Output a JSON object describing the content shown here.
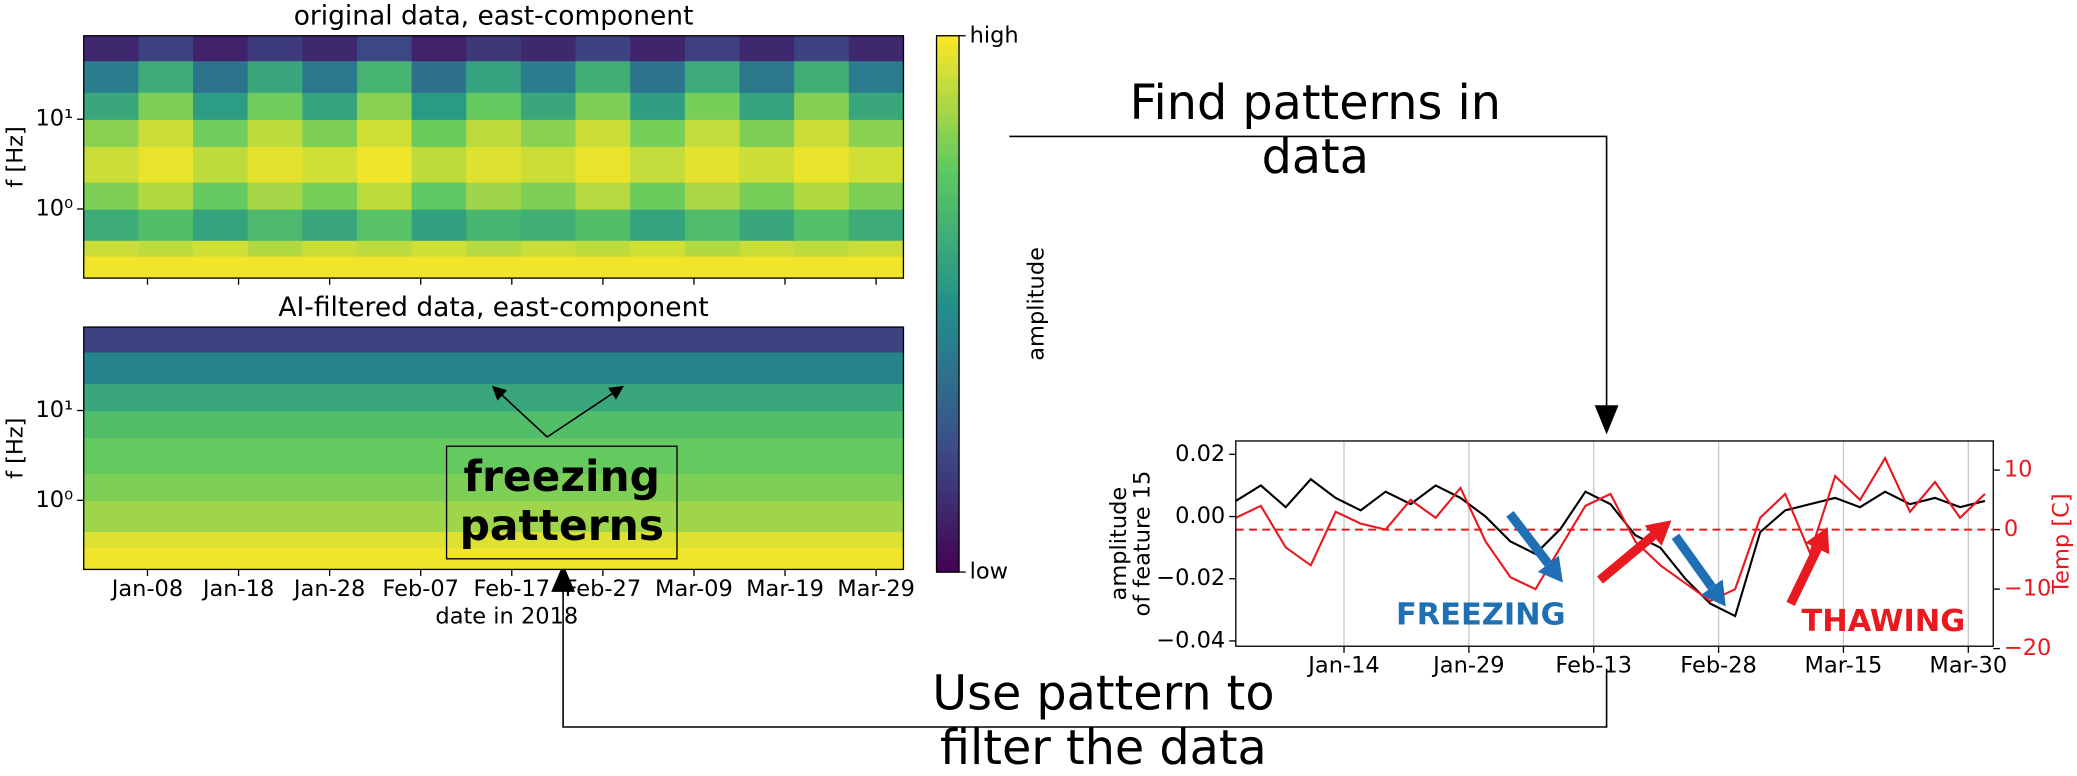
{
  "chart_data": [
    {
      "type": "heatmap",
      "title": "original data, east-component",
      "ylabel": "f [Hz]",
      "log_y": true,
      "ylim": [
        0.17,
        85
      ],
      "yticks": [
        {
          "value": 1,
          "label": "10⁰"
        },
        {
          "value": 10,
          "label": "10¹"
        }
      ],
      "xlim": [
        "2018-01-01",
        "2018-04-01"
      ],
      "xticks": [
        {
          "value": "2018-01-08",
          "label": "Jan-08"
        },
        {
          "value": "2018-01-18",
          "label": "Jan-18"
        },
        {
          "value": "2018-01-28",
          "label": "Jan-28"
        },
        {
          "value": "2018-02-07",
          "label": "Feb-07"
        },
        {
          "value": "2018-02-17",
          "label": "Feb-17"
        },
        {
          "value": "2018-02-27",
          "label": "Feb-27"
        },
        {
          "value": "2018-03-09",
          "label": "Mar-09"
        },
        {
          "value": "2018-03-19",
          "label": "Mar-19"
        },
        {
          "value": "2018-03-29",
          "label": "Mar-29"
        }
      ],
      "show_xticklabels": false,
      "xbins": [
        "2018-01-01",
        "2018-01-07",
        "2018-01-13",
        "2018-01-19",
        "2018-01-25",
        "2018-01-31",
        "2018-02-06",
        "2018-02-12",
        "2018-02-18",
        "2018-02-24",
        "2018-03-02",
        "2018-03-08",
        "2018-03-14",
        "2018-03-20",
        "2018-03-26",
        "2018-04-01"
      ],
      "ybins": [
        0.17,
        0.3,
        0.45,
        1,
        2,
        5,
        10,
        20,
        45,
        85
      ],
      "z": [
        [
          0.98,
          0.98,
          0.98,
          0.98,
          0.98,
          0.98,
          0.98,
          0.98,
          0.98,
          0.98,
          0.98,
          0.98,
          0.98,
          0.98,
          0.98
        ],
        [
          0.92,
          0.9,
          0.93,
          0.88,
          0.92,
          0.9,
          0.93,
          0.89,
          0.92,
          0.9,
          0.93,
          0.88,
          0.92,
          0.9,
          0.92
        ],
        [
          0.62,
          0.7,
          0.58,
          0.68,
          0.6,
          0.72,
          0.57,
          0.66,
          0.63,
          0.7,
          0.58,
          0.69,
          0.6,
          0.71,
          0.62
        ],
        [
          0.8,
          0.88,
          0.76,
          0.86,
          0.79,
          0.9,
          0.75,
          0.85,
          0.8,
          0.89,
          0.77,
          0.87,
          0.79,
          0.88,
          0.8
        ],
        [
          0.92,
          0.97,
          0.9,
          0.96,
          0.93,
          0.98,
          0.9,
          0.95,
          0.92,
          0.97,
          0.91,
          0.96,
          0.92,
          0.97,
          0.93
        ],
        [
          0.82,
          0.92,
          0.78,
          0.9,
          0.8,
          0.93,
          0.77,
          0.9,
          0.82,
          0.92,
          0.79,
          0.91,
          0.8,
          0.92,
          0.82
        ],
        [
          0.6,
          0.8,
          0.55,
          0.78,
          0.58,
          0.82,
          0.54,
          0.76,
          0.6,
          0.8,
          0.56,
          0.79,
          0.58,
          0.81,
          0.6
        ],
        [
          0.42,
          0.62,
          0.38,
          0.6,
          0.4,
          0.65,
          0.37,
          0.58,
          0.42,
          0.63,
          0.39,
          0.61,
          0.4,
          0.63,
          0.42
        ],
        [
          0.12,
          0.2,
          0.1,
          0.18,
          0.12,
          0.22,
          0.1,
          0.17,
          0.12,
          0.2,
          0.11,
          0.19,
          0.12,
          0.2,
          0.12
        ]
      ]
    },
    {
      "type": "heatmap",
      "title": "AI-filtered data, east-component",
      "ylabel": "f [Hz]",
      "xlabel": "date in 2018",
      "log_y": true,
      "ylim": [
        0.17,
        85
      ],
      "yticks": [
        {
          "value": 1,
          "label": "10⁰"
        },
        {
          "value": 10,
          "label": "10¹"
        }
      ],
      "xlim": [
        "2018-01-01",
        "2018-04-01"
      ],
      "xticks": [
        {
          "value": "2018-01-08",
          "label": "Jan-08"
        },
        {
          "value": "2018-01-18",
          "label": "Jan-18"
        },
        {
          "value": "2018-01-28",
          "label": "Jan-28"
        },
        {
          "value": "2018-02-07",
          "label": "Feb-07"
        },
        {
          "value": "2018-02-17",
          "label": "Feb-17"
        },
        {
          "value": "2018-02-27",
          "label": "Feb-27"
        },
        {
          "value": "2018-03-09",
          "label": "Mar-09"
        },
        {
          "value": "2018-03-19",
          "label": "Mar-19"
        },
        {
          "value": "2018-03-29",
          "label": "Mar-29"
        }
      ],
      "show_xticklabels": true,
      "xbins": [
        "2018-01-01",
        "2018-04-01"
      ],
      "ybins": [
        0.17,
        0.3,
        0.45,
        1,
        2,
        5,
        10,
        20,
        45,
        85
      ],
      "z": [
        [
          0.98
        ],
        [
          0.95
        ],
        [
          0.85
        ],
        [
          0.8
        ],
        [
          0.76
        ],
        [
          0.7
        ],
        [
          0.6
        ],
        [
          0.45
        ],
        [
          0.2
        ]
      ]
    },
    {
      "type": "line",
      "ylabel": [
        "amplitude",
        "of feature 15"
      ],
      "y2label": "Temp [C]",
      "grid": "x",
      "xlim": [
        "2018-01-01",
        "2018-04-02"
      ],
      "xticks": [
        {
          "value": "2018-01-14",
          "label": "Jan-14"
        },
        {
          "value": "2018-01-29",
          "label": "Jan-29"
        },
        {
          "value": "2018-02-13",
          "label": "Feb-13"
        },
        {
          "value": "2018-02-28",
          "label": "Feb-28"
        },
        {
          "value": "2018-03-15",
          "label": "Mar-15"
        },
        {
          "value": "2018-03-30",
          "label": "Mar-30"
        }
      ],
      "ylim": [
        -0.0417,
        0.0243
      ],
      "yticks": [
        {
          "value": -0.04,
          "label": "−0.04"
        },
        {
          "value": -0.02,
          "label": "−0.02"
        },
        {
          "value": 0,
          "label": "0.00"
        },
        0.02
      ],
      "y2lim": [
        -19.6,
        14.9
      ],
      "y2ticks": [
        {
          "value": -20,
          "label": "−20"
        },
        {
          "value": -10,
          "label": "−10"
        },
        0,
        10
      ],
      "y2color": "#e8191f",
      "reference_line": {
        "axis": "y2",
        "value": 0,
        "color": "#e8191f"
      },
      "x": [
        "2018-01-01",
        "2018-01-04",
        "2018-01-07",
        "2018-01-10",
        "2018-01-13",
        "2018-01-16",
        "2018-01-19",
        "2018-01-22",
        "2018-01-25",
        "2018-01-28",
        "2018-01-31",
        "2018-02-03",
        "2018-02-06",
        "2018-02-09",
        "2018-02-12",
        "2018-02-15",
        "2018-02-18",
        "2018-02-21",
        "2018-02-24",
        "2018-02-27",
        "2018-03-02",
        "2018-03-05",
        "2018-03-08",
        "2018-03-11",
        "2018-03-14",
        "2018-03-17",
        "2018-03-20",
        "2018-03-23",
        "2018-03-26",
        "2018-03-29",
        "2018-04-01"
      ],
      "series": [
        {
          "color": "#000000",
          "values": [
            0.005,
            0.01,
            0.003,
            0.012,
            0.006,
            0.002,
            0.008,
            0.004,
            0.01,
            0.006,
            0.0,
            -0.008,
            -0.012,
            -0.004,
            0.008,
            0.004,
            -0.006,
            -0.01,
            -0.02,
            -0.028,
            -0.032,
            -0.005,
            0.002,
            0.004,
            0.006,
            0.003,
            0.008,
            0.004,
            0.006,
            0.003,
            0.005
          ]
        },
        {
          "color": "#e8191f",
          "axis": "y2",
          "values": [
            2,
            4,
            -3,
            -6,
            3,
            1,
            0,
            5,
            2,
            7,
            -2,
            -8,
            -10,
            -3,
            4,
            6,
            -2,
            -6,
            -9,
            -12,
            -10,
            2,
            6,
            -4,
            9,
            5,
            12,
            3,
            8,
            2,
            6
          ]
        }
      ],
      "annotations": [
        {
          "text": "FREEZING",
          "color": "#1f6fb5"
        },
        {
          "text": "THAWING",
          "color": "#e8191f"
        }
      ]
    }
  ],
  "colorbar": {
    "label": "amplitude",
    "colormap": "viridis",
    "ticks": [
      {
        "value": 0,
        "label": "low"
      },
      {
        "value": 1,
        "label": "high"
      }
    ]
  },
  "annotations": {
    "find": [
      "Find patterns in",
      "data"
    ],
    "use": [
      "Use pattern to",
      "filter the data"
    ],
    "freezing": [
      "freezing",
      "patterns"
    ]
  }
}
